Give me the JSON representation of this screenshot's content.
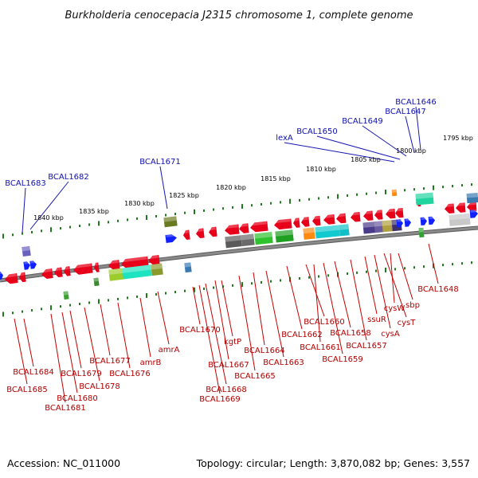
{
  "title": "Burkholderia cenocepacia J2315 chromosome 1, complete genome",
  "footer": {
    "accession": "Accession: NC_011000",
    "summary": "Topology: circular; Length: 3,870,082 bp; Genes: 3,557"
  },
  "colors": {
    "backbone": "#8a8a8a",
    "tick": "#1f7a1f",
    "gene_red": "#e8001a",
    "gene_blue": "#1020ff",
    "label_blue": "#1010b0",
    "label_red": "#b00000"
  },
  "scale_labels": [
    "1795 kbp",
    "1800 kbp",
    "1805 kbp",
    "1810 kbp",
    "1815 kbp",
    "1820 kbp",
    "1825 kbp",
    "1830 kbp",
    "1835 kbp",
    "1840 kbp"
  ],
  "genes_top": [
    "BCAL1646",
    "BCAL1647",
    "BCAL1649",
    "BCAL1650",
    "lexA",
    "BCAL1671",
    "BCAL1682",
    "BCAL1683"
  ],
  "genes_bottom": [
    "BCAL1648",
    "sbp",
    "cysW",
    "cysT",
    "cysA",
    "ssuR",
    "BCAL1657",
    "BCAL1658",
    "BCAL1659",
    "BCAL1660",
    "BCAL1661",
    "BCAL1662",
    "BCAL1663",
    "BCAL1664",
    "BCAL1665",
    "kgtP",
    "BCAL1667",
    "BCAL1668",
    "BCAL1669",
    "BCAL1670",
    "amrA",
    "amrB",
    "BCAL1676",
    "BCAL1677",
    "BCAL1678",
    "BCAL1679",
    "BCAL1680",
    "BCAL1681",
    "BCAL1684",
    "BCAL1685"
  ]
}
